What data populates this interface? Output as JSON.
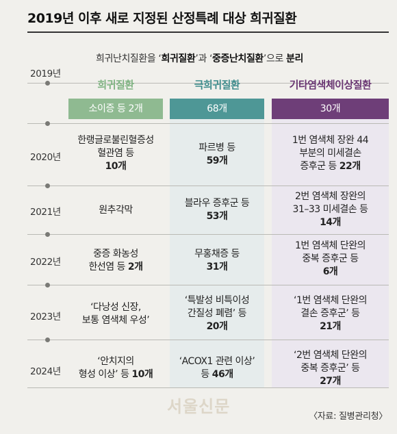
{
  "title": "2019년 이후 새로 지정된 산정특례 대상 희귀질환",
  "subtitle": {
    "pre": "희귀난치질환을 ‘",
    "term1": "희귀질환",
    "mid": "’과 ‘",
    "term2": "중증난치질환",
    "post": "’으로 ",
    "end": "분리"
  },
  "base_year": "2019년",
  "columns": [
    {
      "name": "희귀질환",
      "count": "소이증 등 2개"
    },
    {
      "name": "극희귀질환",
      "count": "68개"
    },
    {
      "name": "기타염색체이상질환",
      "count": "30개"
    }
  ],
  "rows": [
    {
      "year": "2020년",
      "rare": {
        "l1": "한랭글로불린혈증성",
        "l2": "혈관염 등",
        "l3": "10개"
      },
      "ultra": {
        "l1": "파르병 등",
        "l2": "59개"
      },
      "chromo": {
        "l1": "1번 염색체 장완 44",
        "l2": "부분의 미세결손",
        "l3a": "증후군 등 ",
        "l3b": "22개"
      }
    },
    {
      "year": "2021년",
      "rare": {
        "l1": "원추각막"
      },
      "ultra": {
        "l1": "블라우 증후군 등",
        "l2": "53개"
      },
      "chromo": {
        "l1": "2번 염색체 장완의",
        "l2": "31–33 미세결손 등",
        "l3": "14개"
      }
    },
    {
      "year": "2022년",
      "rare": {
        "l1": "중증 화농성",
        "l2a": "한선염 등 ",
        "l2b": "2개"
      },
      "ultra": {
        "l1": "무홍채증 등",
        "l2": "31개"
      },
      "chromo": {
        "l1": "1번 염색체 단완의",
        "l2": "중복 증후군 등",
        "l3": "6개"
      }
    },
    {
      "year": "2023년",
      "rare": {
        "l1": "‘다낭성 신장,",
        "l2": "보통 염색체 우성’"
      },
      "ultra": {
        "l1": "‘특발성 비특이성",
        "l2": "간질성 폐렴’ 등",
        "l3": "20개"
      },
      "chromo": {
        "l1": "‘1번 염색체 단완의",
        "l2": "결손 증후군’ 등",
        "l3": "21개"
      }
    },
    {
      "year": "2024년",
      "rare": {
        "l1": "‘안치지의",
        "l2a": "형성 이상’ 등 ",
        "l2b": "10개"
      },
      "ultra": {
        "l1": "‘ACOX1 관련 이상’",
        "l2a": "등 ",
        "l2b": "46개"
      },
      "chromo": {
        "l1": "‘2번 염색체 단완의",
        "l2": "중복 증후군’ 등",
        "l3": "27개"
      }
    }
  ],
  "watermark": "서울신문",
  "source": "〈자료: 질병관리청〉",
  "colors": {
    "rare": "#8fba91",
    "ultra": "#4e9796",
    "chromo": "#6e3e78",
    "rare_text": "#7fb382",
    "ultra_text": "#3f8c8c",
    "chromo_text": "#6a3673"
  }
}
